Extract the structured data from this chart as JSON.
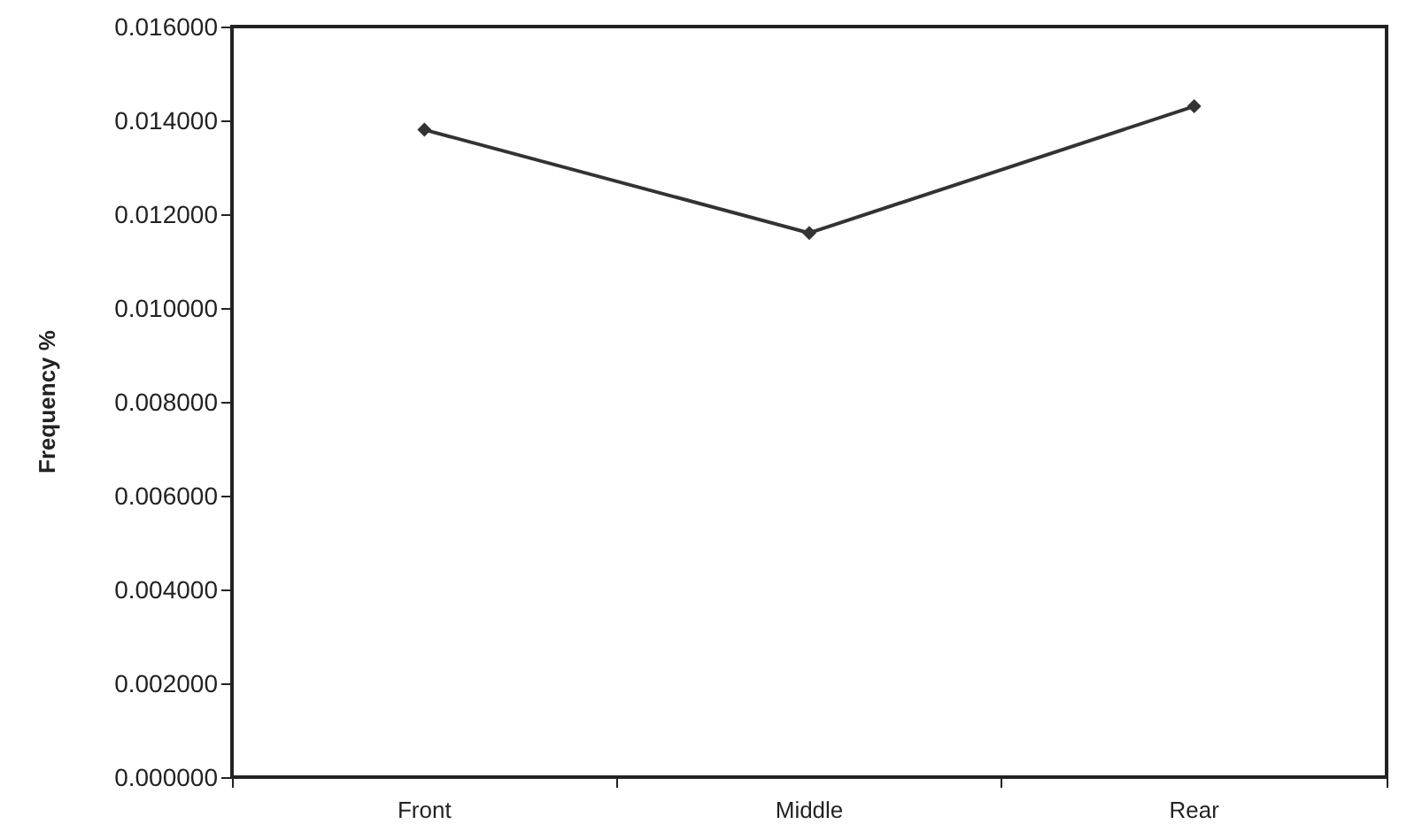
{
  "chart_data": {
    "type": "line",
    "ylabel": "Frequency %",
    "categories": [
      "Front",
      "Middle",
      "Rear"
    ],
    "series": [
      {
        "color": "#333333",
        "values": [
          0.0138,
          0.0116,
          0.0143
        ]
      }
    ],
    "ylim": [
      0,
      0.016
    ],
    "yticks": [
      {
        "value": 0,
        "label": "0.000000"
      },
      {
        "value": 0.002,
        "label": "0.002000"
      },
      {
        "value": 0.004,
        "label": "0.004000"
      },
      {
        "value": 0.006,
        "label": "0.006000"
      },
      {
        "value": 0.008,
        "label": "0.008000"
      },
      {
        "value": 0.01,
        "label": "0.010000"
      },
      {
        "value": 0.012,
        "label": "0.012000"
      },
      {
        "value": 0.014,
        "label": "0.014000"
      },
      {
        "value": 0.016,
        "label": "0.016000"
      }
    ],
    "grid": false,
    "marker": "diamond",
    "line_style": "solid"
  }
}
